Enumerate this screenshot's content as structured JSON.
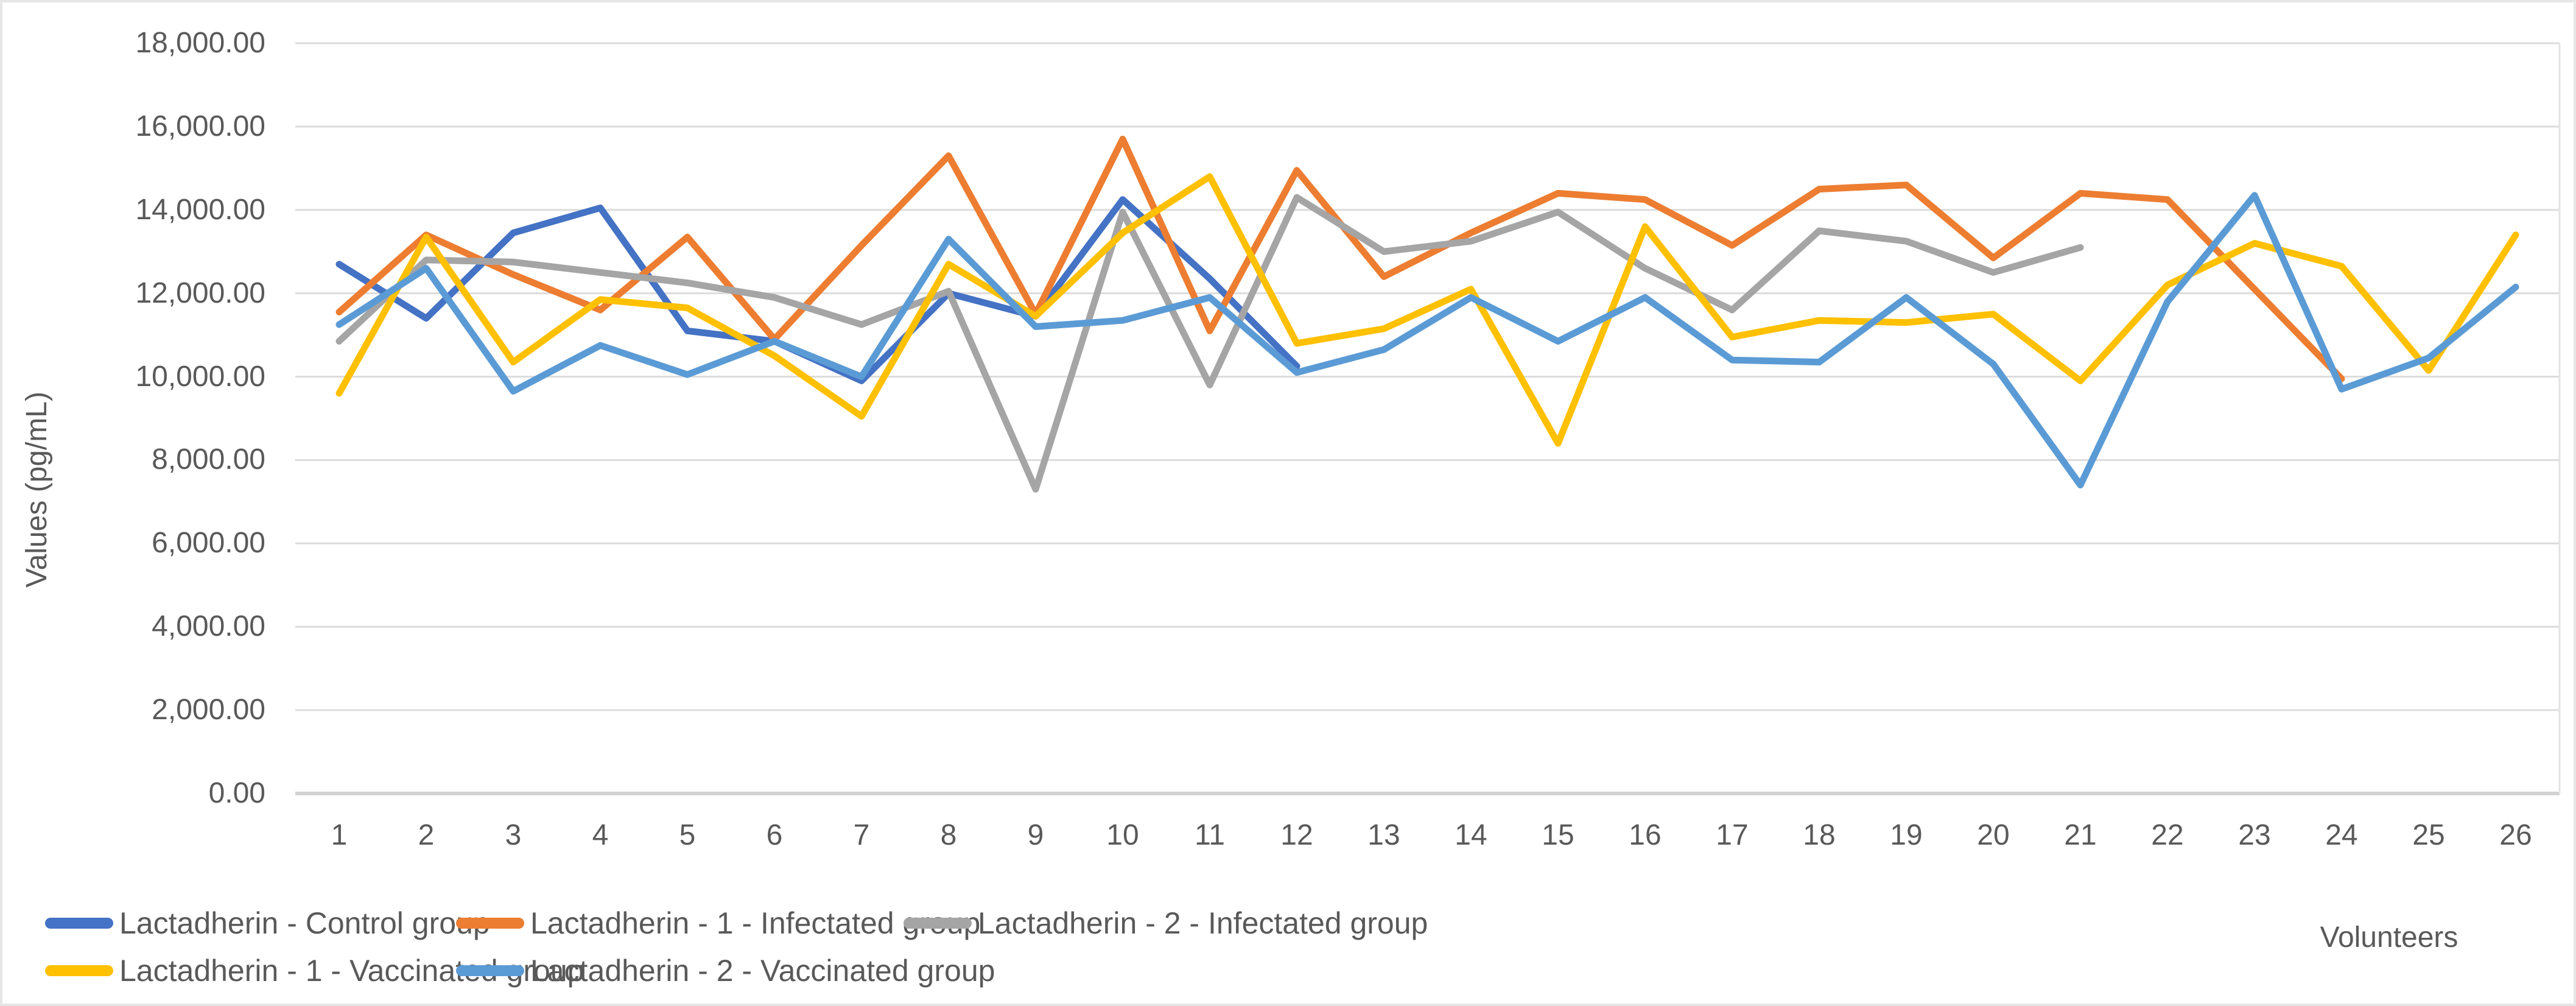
{
  "chart_data": {
    "type": "line",
    "title": "",
    "xlabel": "Volunteers",
    "ylabel": "Values (pg/mL)",
    "ylim": [
      0,
      18000
    ],
    "ytick_step": 2000,
    "ytick_labels": [
      "0.00",
      "2,000.00",
      "4,000.00",
      "6,000.00",
      "8,000.00",
      "10,000.00",
      "12,000.00",
      "14,000.00",
      "16,000.00",
      "18,000.00"
    ],
    "categories": [
      1,
      2,
      3,
      4,
      5,
      6,
      7,
      8,
      9,
      10,
      11,
      12,
      13,
      14,
      15,
      16,
      17,
      18,
      19,
      20,
      21,
      22,
      23,
      24,
      25,
      26
    ],
    "grid": true,
    "legend_position": "bottom-left",
    "series": [
      {
        "name": "Lactadherin - Control group",
        "color": "#4472C4",
        "values": [
          12700,
          11400,
          13450,
          14050,
          11100,
          10850,
          9900,
          12000,
          11450,
          14250,
          12350,
          10250
        ]
      },
      {
        "name": "Lactadherin - 1 - Infectated group",
        "color": "#ED7D31",
        "values": [
          11550,
          13400,
          12450,
          11600,
          13350,
          10900,
          13150,
          15300,
          11500,
          15700,
          11100,
          14950,
          12400,
          13450,
          14400,
          14250,
          13150,
          14500,
          14600,
          12850,
          14400,
          14250,
          12100,
          9950
        ]
      },
      {
        "name": "Lactadherin - 2 - Infectated group",
        "color": "#A5A5A5",
        "values": [
          10850,
          12800,
          12750,
          12500,
          12250,
          11900,
          11250,
          12050,
          7300,
          13950,
          9800,
          14300,
          13000,
          13250,
          13950,
          12600,
          11600,
          13500,
          13250,
          12500,
          13100
        ]
      },
      {
        "name": "Lactadherin - 1 - Vaccinated group",
        "color": "#FFC000",
        "values": [
          9600,
          13350,
          10350,
          11850,
          11650,
          10500,
          9050,
          12700,
          11450,
          13450,
          14800,
          10800,
          11150,
          12100,
          8400,
          13600,
          10950,
          11350,
          11300,
          11500,
          9900,
          12200,
          13200,
          12650,
          10150,
          13400
        ]
      },
      {
        "name": "Lactadherin - 2 - Vaccinated group",
        "color": "#5B9BD5",
        "values": [
          11250,
          12600,
          9650,
          10750,
          10050,
          10850,
          10000,
          13300,
          11200,
          11350,
          11900,
          10100,
          10650,
          11900,
          10850,
          11900,
          10400,
          10350,
          11900,
          10300,
          7400,
          11800,
          14350,
          9700,
          10450,
          12150
        ]
      }
    ]
  },
  "axes": {
    "x_title": "Volunteers",
    "y_title": "Values (pg/mL)"
  }
}
